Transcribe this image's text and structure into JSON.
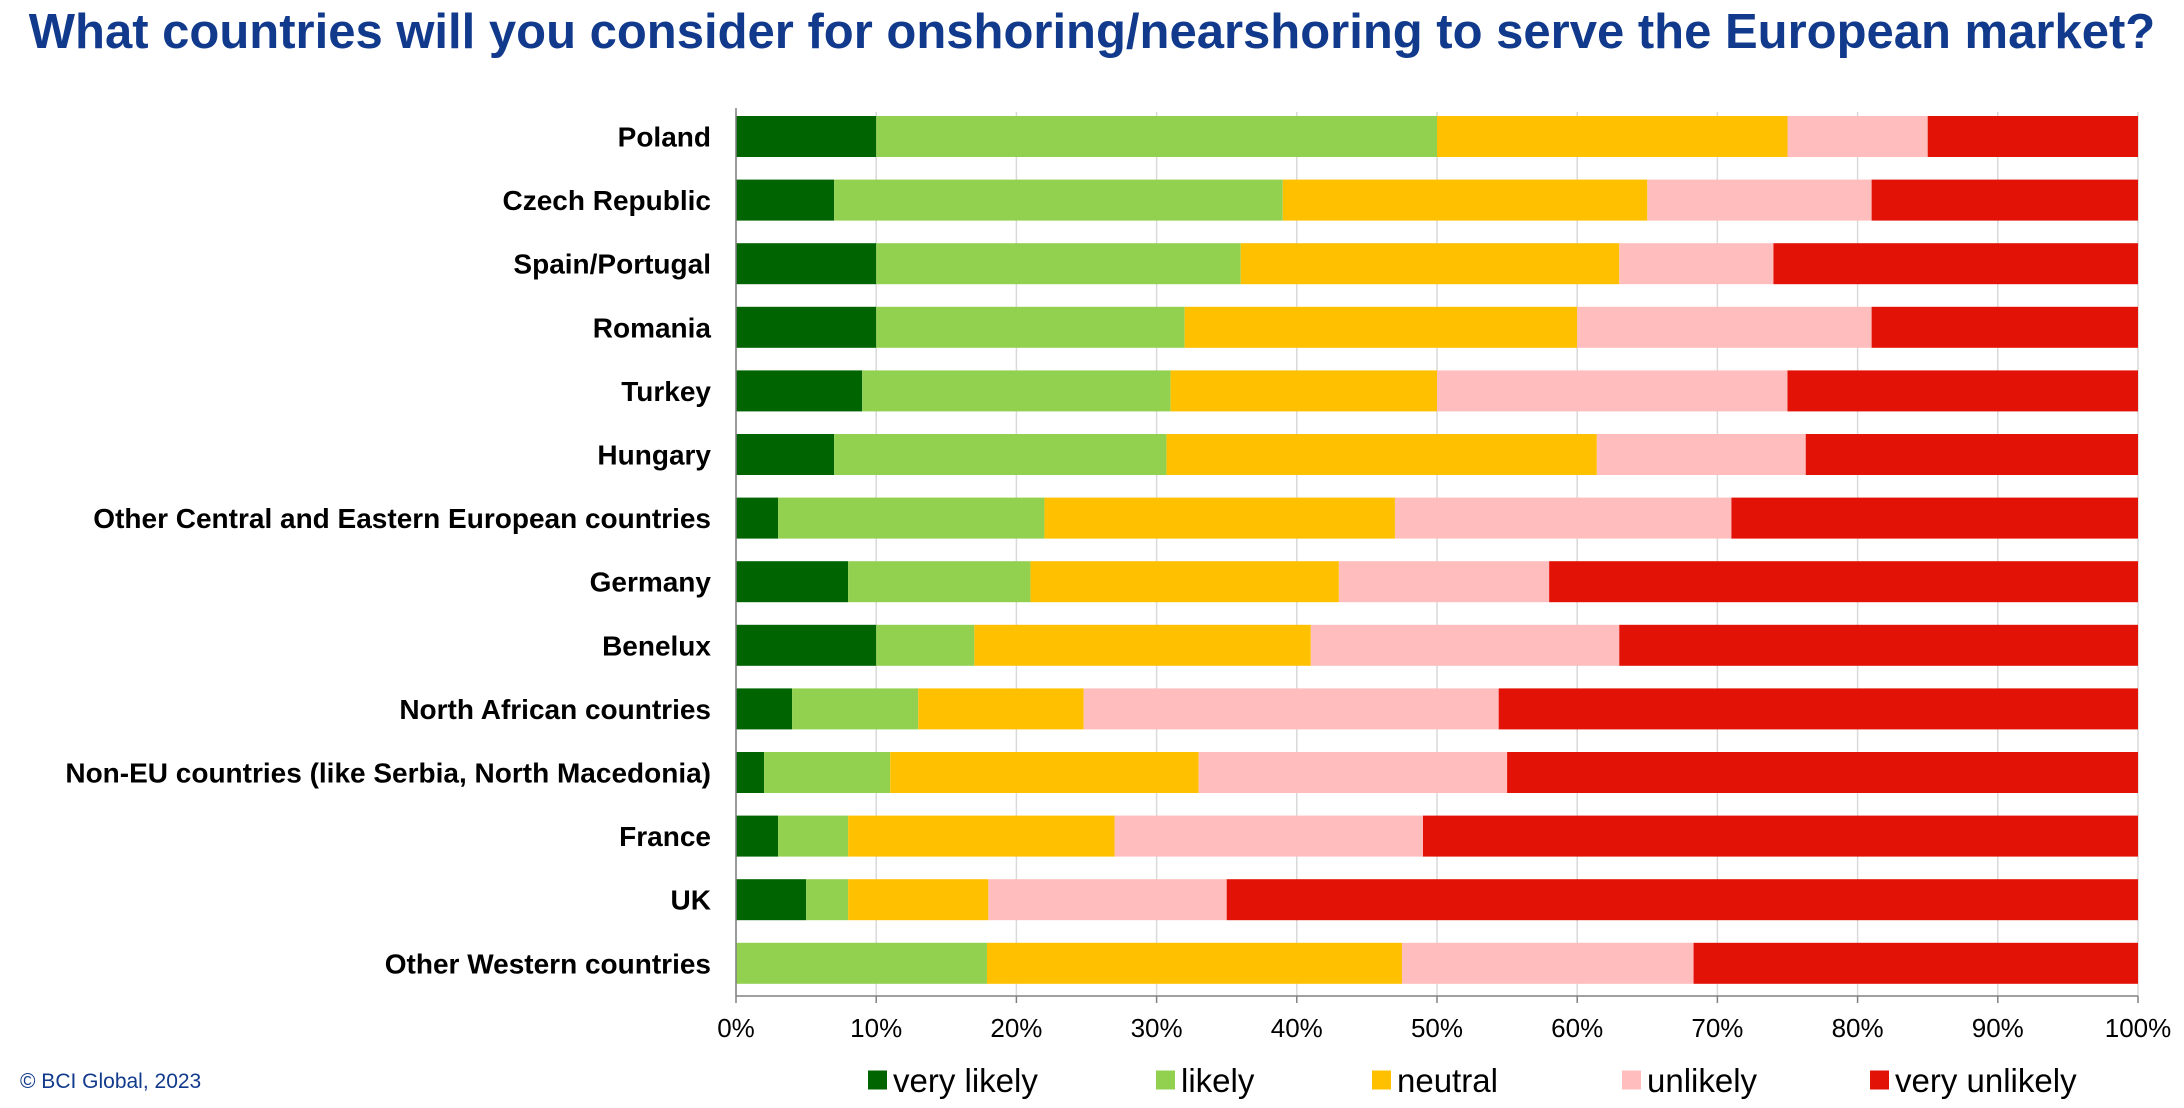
{
  "source": "© BCI Global, 2023",
  "chart_data": {
    "type": "bar",
    "orientation": "horizontal",
    "stacked": "percent",
    "title": "What countries will you consider for onshoring/nearshoring to serve the European market?",
    "xlabel": "",
    "ylabel": "",
    "xlim": [
      0,
      100
    ],
    "ticks": [
      "0%",
      "10%",
      "20%",
      "30%",
      "40%",
      "50%",
      "60%",
      "70%",
      "80%",
      "90%",
      "100%"
    ],
    "grid": true,
    "legend_position": "bottom",
    "categories": [
      "Poland",
      "Czech Republic",
      "Spain/Portugal",
      "Romania",
      "Turkey",
      "Hungary",
      "Other Central and Eastern European countries",
      "Germany",
      "Benelux",
      "North African countries",
      "Non-EU countries (like Serbia, North Macedonia)",
      "France",
      "UK",
      "Other Western countries"
    ],
    "series": [
      {
        "name": "very likely",
        "color": "#006400",
        "values": [
          10,
          7,
          10,
          10,
          9,
          7,
          3,
          8,
          10,
          4,
          2,
          3,
          5,
          0
        ]
      },
      {
        "name": "likely",
        "color": "#92d050",
        "values": [
          40,
          32,
          26,
          22,
          22,
          23.7,
          19,
          13,
          7,
          9,
          9,
          5,
          3,
          17.9
        ]
      },
      {
        "name": "neutral",
        "color": "#ffc000",
        "values": [
          25,
          26,
          27,
          28,
          19,
          30.7,
          25,
          22,
          24,
          11.8,
          22,
          19,
          10,
          29.6
        ]
      },
      {
        "name": "unlikely",
        "color": "#ffbdbd",
        "values": [
          10,
          16,
          11,
          21,
          25,
          14.9,
          24,
          15,
          22,
          29.6,
          22,
          22,
          17,
          20.8
        ]
      },
      {
        "name": "very unlikely",
        "color": "#e31206",
        "values": [
          15,
          19,
          26,
          19,
          25,
          23.7,
          29,
          42,
          37,
          45.6,
          45,
          51,
          65,
          31.7
        ]
      }
    ]
  }
}
